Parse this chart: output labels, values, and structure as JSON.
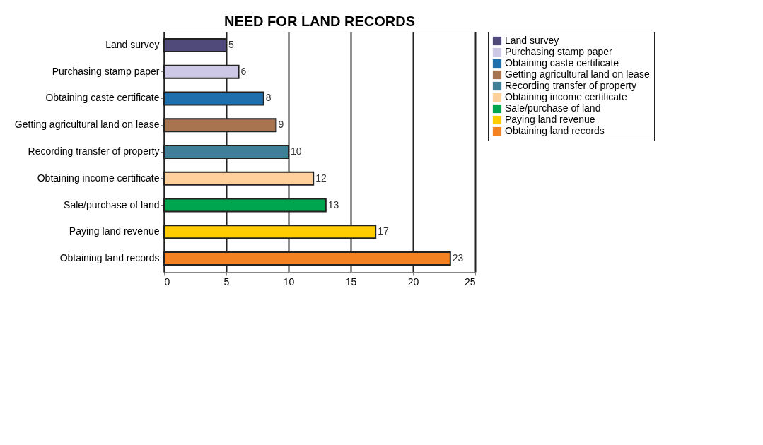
{
  "chart_data": {
    "type": "bar",
    "orientation": "horizontal",
    "title": "NEED FOR LAND RECORDS",
    "categories": [
      "Land survey",
      "Purchasing stamp paper",
      "Obtaining caste certificate",
      "Getting agricultural land on lease",
      "Recording transfer of property",
      "Obtaining income certificate",
      "Sale/purchase of land",
      "Paying land revenue",
      "Obtaining land records"
    ],
    "series": [
      {
        "name": "Land survey",
        "color": "#4f4a7a",
        "values": [
          5,
          null,
          null,
          null,
          null,
          null,
          null,
          null,
          null
        ]
      },
      {
        "name": "Purchasing stamp paper",
        "color": "#ccc8e6",
        "values": [
          null,
          6,
          null,
          null,
          null,
          null,
          null,
          null,
          null
        ]
      },
      {
        "name": "Obtaining caste certificate",
        "color": "#1f6fad",
        "values": [
          null,
          null,
          8,
          null,
          null,
          null,
          null,
          null,
          null
        ]
      },
      {
        "name": "Getting agricultural land on lease",
        "color": "#a87450",
        "values": [
          null,
          null,
          null,
          9,
          null,
          null,
          null,
          null,
          null
        ]
      },
      {
        "name": "Recording transfer of property",
        "color": "#3f7f97",
        "values": [
          null,
          null,
          null,
          null,
          10,
          null,
          null,
          null,
          null
        ]
      },
      {
        "name": "Obtaining income certificate",
        "color": "#ffcf9c",
        "values": [
          null,
          null,
          null,
          null,
          null,
          12,
          null,
          null,
          null
        ]
      },
      {
        "name": "Sale/purchase of land",
        "color": "#00a550",
        "values": [
          null,
          null,
          null,
          null,
          null,
          null,
          13,
          null,
          null
        ]
      },
      {
        "name": "Paying land revenue",
        "color": "#ffcc00",
        "values": [
          null,
          null,
          null,
          null,
          null,
          null,
          null,
          17,
          null
        ]
      },
      {
        "name": "Obtaining land records",
        "color": "#f58220",
        "values": [
          null,
          null,
          null,
          null,
          null,
          null,
          null,
          null,
          23
        ]
      }
    ],
    "xlim": [
      0,
      25
    ],
    "xticks": [
      0,
      5,
      10,
      15,
      20,
      25
    ],
    "grid": "x",
    "legend": "right",
    "data_labels": true
  }
}
